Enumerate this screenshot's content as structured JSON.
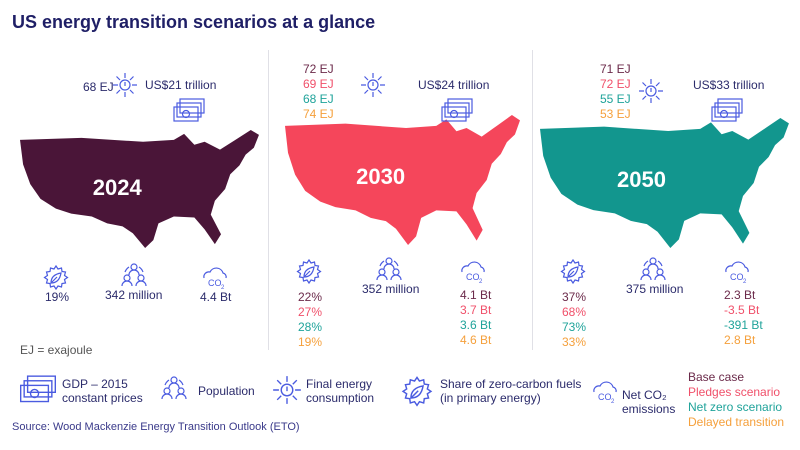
{
  "title": "US energy transition scenarios at a glance",
  "colors": {
    "base": "#6b2a4a",
    "pledges": "#f0506a",
    "netzero": "#1fa39a",
    "delayed": "#f5a03c",
    "map2024": "#4a1538",
    "map2030": "#f5465b",
    "map2050": "#12968e",
    "icon": "#4a5be0"
  },
  "panels": [
    {
      "year": "2024",
      "energy": [
        "68 EJ"
      ],
      "gdp": "US$21 trillion",
      "fuels": [
        "19%"
      ],
      "population": "342 million",
      "co2": [
        "4.4 Bt"
      ]
    },
    {
      "year": "2030",
      "energy": [
        "72 EJ",
        "69 EJ",
        "68 EJ",
        "74 EJ"
      ],
      "gdp": "US$24 trillion",
      "fuels": [
        "22%",
        "27%",
        "28%",
        "19%"
      ],
      "population": "352 million",
      "co2": [
        "4.1 Bt",
        "3.7 Bt",
        "3.6 Bt",
        "4.6 Bt"
      ]
    },
    {
      "year": "2050",
      "energy": [
        "71 EJ",
        "72 EJ",
        "55 EJ",
        "53 EJ"
      ],
      "gdp": "US$33 trillion",
      "fuels": [
        "37%",
        "68%",
        "73%",
        "33%"
      ],
      "population": "375 million",
      "co2": [
        "2.3 Bt",
        "-3.5 Bt",
        "-391 Bt",
        "2.8 Bt"
      ]
    }
  ],
  "note": "EJ = exajoule",
  "legend": {
    "gdp": "GDP – 2015 constant prices",
    "population": "Population",
    "energy": "Final energy consumption",
    "fuels": "Share of zero-carbon fuels (in primary energy)",
    "co2": "Net CO₂ emissions",
    "scenarios": [
      "Base case",
      "Pledges scenario",
      "Net zero scenario",
      "Delayed transition"
    ]
  },
  "source": "Source: Wood Mackenzie Energy Transition Outlook (ETO)"
}
